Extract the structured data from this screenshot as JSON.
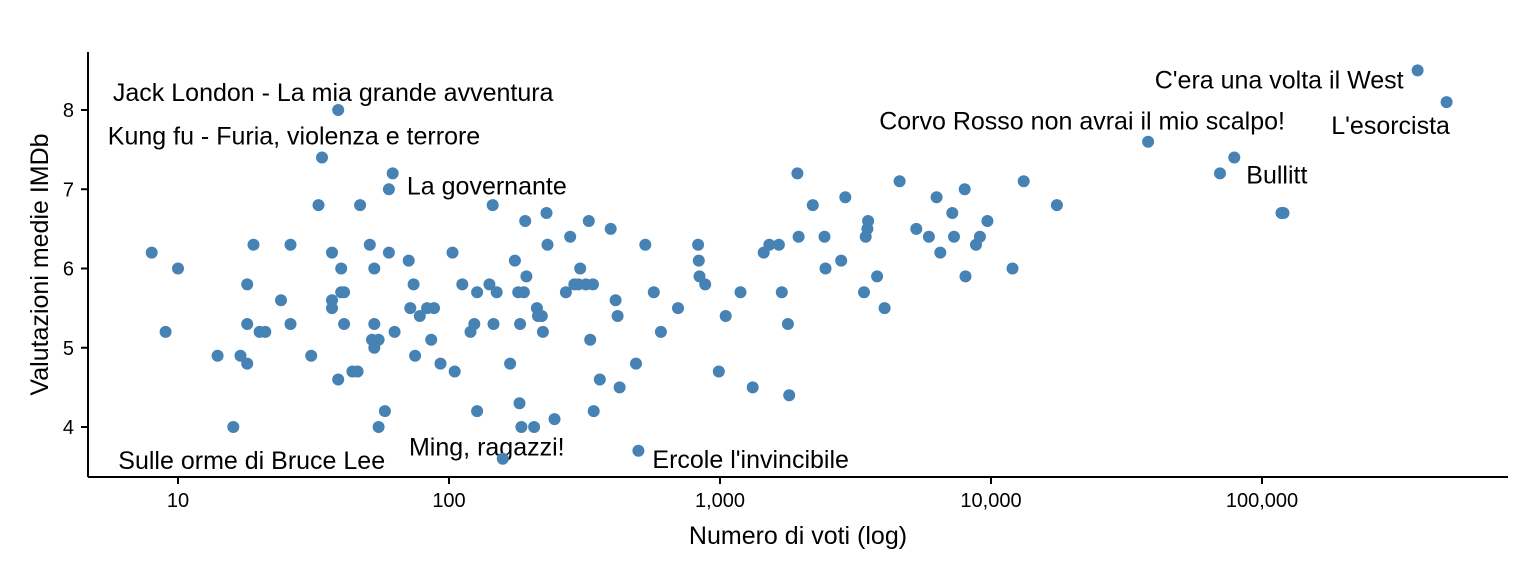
{
  "chart_data": {
    "type": "scatter",
    "title": "",
    "xlabel": "Numero di voti (log)",
    "ylabel": "Valutazioni medie IMDb",
    "x_scale": "log10",
    "xlim": [
      5,
      800000
    ],
    "ylim": [
      3.4,
      8.75
    ],
    "x_ticks": [
      {
        "value": 10,
        "label": "10"
      },
      {
        "value": 100,
        "label": "100"
      },
      {
        "value": 1000,
        "label": "1,000"
      },
      {
        "value": 10000,
        "label": "10,000"
      },
      {
        "value": 100000,
        "label": "100,000"
      }
    ],
    "y_ticks": [
      {
        "value": 4,
        "label": "4"
      },
      {
        "value": 5,
        "label": "5"
      },
      {
        "value": 6,
        "label": "6"
      },
      {
        "value": 7,
        "label": "7"
      },
      {
        "value": 8,
        "label": "8"
      }
    ],
    "grid": false,
    "point_color": "#4682B4",
    "points": [
      {
        "x": 8,
        "y": 6.2
      },
      {
        "x": 9,
        "y": 5.2
      },
      {
        "x": 10,
        "y": 6.0
      },
      {
        "x": 14,
        "y": 4.9
      },
      {
        "x": 16,
        "y": 4.0
      },
      {
        "x": 17,
        "y": 4.9
      },
      {
        "x": 18,
        "y": 5.8
      },
      {
        "x": 18,
        "y": 5.3
      },
      {
        "x": 18,
        "y": 4.8
      },
      {
        "x": 19,
        "y": 6.3
      },
      {
        "x": 20,
        "y": 5.2
      },
      {
        "x": 21,
        "y": 5.2
      },
      {
        "x": 24,
        "y": 5.6
      },
      {
        "x": 26,
        "y": 6.3
      },
      {
        "x": 26,
        "y": 5.3
      },
      {
        "x": 31,
        "y": 4.9
      },
      {
        "x": 33,
        "y": 6.8
      },
      {
        "x": 34,
        "y": 7.4
      },
      {
        "x": 37,
        "y": 6.2
      },
      {
        "x": 37,
        "y": 5.6
      },
      {
        "x": 37,
        "y": 5.5
      },
      {
        "x": 39,
        "y": 8.0
      },
      {
        "x": 39,
        "y": 4.6
      },
      {
        "x": 40,
        "y": 6.0
      },
      {
        "x": 40,
        "y": 5.7
      },
      {
        "x": 41,
        "y": 5.7
      },
      {
        "x": 41,
        "y": 5.3
      },
      {
        "x": 44,
        "y": 4.7
      },
      {
        "x": 46,
        "y": 4.7
      },
      {
        "x": 47,
        "y": 6.8
      },
      {
        "x": 51,
        "y": 6.3
      },
      {
        "x": 52,
        "y": 5.1
      },
      {
        "x": 53,
        "y": 6.0
      },
      {
        "x": 53,
        "y": 5.3
      },
      {
        "x": 53,
        "y": 5.0
      },
      {
        "x": 55,
        "y": 5.1
      },
      {
        "x": 55,
        "y": 4.0
      },
      {
        "x": 58,
        "y": 4.2
      },
      {
        "x": 60,
        "y": 7.0
      },
      {
        "x": 60,
        "y": 6.2
      },
      {
        "x": 62,
        "y": 7.2
      },
      {
        "x": 63,
        "y": 5.2
      },
      {
        "x": 71,
        "y": 6.1
      },
      {
        "x": 72,
        "y": 5.5
      },
      {
        "x": 74,
        "y": 5.8
      },
      {
        "x": 75,
        "y": 4.9
      },
      {
        "x": 78,
        "y": 5.4
      },
      {
        "x": 83,
        "y": 5.5
      },
      {
        "x": 86,
        "y": 5.1
      },
      {
        "x": 88,
        "y": 5.5
      },
      {
        "x": 93,
        "y": 4.8
      },
      {
        "x": 103,
        "y": 6.2
      },
      {
        "x": 105,
        "y": 4.7
      },
      {
        "x": 112,
        "y": 5.8
      },
      {
        "x": 120,
        "y": 5.2
      },
      {
        "x": 124,
        "y": 5.3
      },
      {
        "x": 127,
        "y": 4.2
      },
      {
        "x": 127,
        "y": 5.7
      },
      {
        "x": 141,
        "y": 5.8
      },
      {
        "x": 145,
        "y": 6.8
      },
      {
        "x": 146,
        "y": 5.3
      },
      {
        "x": 150,
        "y": 5.7
      },
      {
        "x": 158,
        "y": 3.6
      },
      {
        "x": 168,
        "y": 4.8
      },
      {
        "x": 175,
        "y": 6.1
      },
      {
        "x": 180,
        "y": 5.7
      },
      {
        "x": 182,
        "y": 4.3
      },
      {
        "x": 183,
        "y": 5.3
      },
      {
        "x": 185,
        "y": 4.0
      },
      {
        "x": 189,
        "y": 5.7
      },
      {
        "x": 191,
        "y": 6.6
      },
      {
        "x": 193,
        "y": 5.9
      },
      {
        "x": 206,
        "y": 4.0
      },
      {
        "x": 211,
        "y": 5.5
      },
      {
        "x": 213,
        "y": 5.4
      },
      {
        "x": 220,
        "y": 5.4
      },
      {
        "x": 222,
        "y": 5.2
      },
      {
        "x": 229,
        "y": 6.7
      },
      {
        "x": 231,
        "y": 6.3
      },
      {
        "x": 245,
        "y": 4.1
      },
      {
        "x": 270,
        "y": 5.7
      },
      {
        "x": 280,
        "y": 6.4
      },
      {
        "x": 290,
        "y": 5.8
      },
      {
        "x": 300,
        "y": 5.8
      },
      {
        "x": 305,
        "y": 6.0
      },
      {
        "x": 320,
        "y": 5.8
      },
      {
        "x": 328,
        "y": 6.6
      },
      {
        "x": 332,
        "y": 5.1
      },
      {
        "x": 340,
        "y": 5.8
      },
      {
        "x": 342,
        "y": 4.2
      },
      {
        "x": 360,
        "y": 4.6
      },
      {
        "x": 395,
        "y": 6.5
      },
      {
        "x": 412,
        "y": 5.6
      },
      {
        "x": 419,
        "y": 5.4
      },
      {
        "x": 426,
        "y": 4.5
      },
      {
        "x": 490,
        "y": 4.8
      },
      {
        "x": 500,
        "y": 3.7
      },
      {
        "x": 530,
        "y": 6.3
      },
      {
        "x": 570,
        "y": 5.7
      },
      {
        "x": 605,
        "y": 5.2
      },
      {
        "x": 700,
        "y": 5.5
      },
      {
        "x": 830,
        "y": 6.3
      },
      {
        "x": 835,
        "y": 6.1
      },
      {
        "x": 840,
        "y": 5.9
      },
      {
        "x": 882,
        "y": 5.8
      },
      {
        "x": 990,
        "y": 4.7
      },
      {
        "x": 1050,
        "y": 5.4
      },
      {
        "x": 1190,
        "y": 5.7
      },
      {
        "x": 1320,
        "y": 4.5
      },
      {
        "x": 1450,
        "y": 6.2
      },
      {
        "x": 1520,
        "y": 6.3
      },
      {
        "x": 1650,
        "y": 6.3
      },
      {
        "x": 1690,
        "y": 5.7
      },
      {
        "x": 1780,
        "y": 5.3
      },
      {
        "x": 1800,
        "y": 4.4
      },
      {
        "x": 1930,
        "y": 7.2
      },
      {
        "x": 1950,
        "y": 6.4
      },
      {
        "x": 2200,
        "y": 6.8
      },
      {
        "x": 2430,
        "y": 6.4
      },
      {
        "x": 2450,
        "y": 6.0
      },
      {
        "x": 2800,
        "y": 6.1
      },
      {
        "x": 2900,
        "y": 6.9
      },
      {
        "x": 3400,
        "y": 5.7
      },
      {
        "x": 3450,
        "y": 6.4
      },
      {
        "x": 3500,
        "y": 6.5
      },
      {
        "x": 3520,
        "y": 6.6
      },
      {
        "x": 3800,
        "y": 5.9
      },
      {
        "x": 4050,
        "y": 5.5
      },
      {
        "x": 4600,
        "y": 7.1
      },
      {
        "x": 5300,
        "y": 6.5
      },
      {
        "x": 5900,
        "y": 6.4
      },
      {
        "x": 6300,
        "y": 6.9
      },
      {
        "x": 6500,
        "y": 6.2
      },
      {
        "x": 7200,
        "y": 6.7
      },
      {
        "x": 7300,
        "y": 6.4
      },
      {
        "x": 8000,
        "y": 7.0
      },
      {
        "x": 8050,
        "y": 5.9
      },
      {
        "x": 8800,
        "y": 6.3
      },
      {
        "x": 9100,
        "y": 6.4
      },
      {
        "x": 9700,
        "y": 6.6
      },
      {
        "x": 12000,
        "y": 6.0
      },
      {
        "x": 13200,
        "y": 7.1
      },
      {
        "x": 17500,
        "y": 6.8
      },
      {
        "x": 38000,
        "y": 7.6
      },
      {
        "x": 70000,
        "y": 7.2
      },
      {
        "x": 79000,
        "y": 7.4
      },
      {
        "x": 118000,
        "y": 6.7
      },
      {
        "x": 120000,
        "y": 6.7
      },
      {
        "x": 375000,
        "y": 8.5
      },
      {
        "x": 480000,
        "y": 8.1
      }
    ],
    "annotations": [
      {
        "text": "Jack London - La mia grande avventura",
        "x": 39,
        "y": 8.0
      },
      {
        "text": "Kung fu - Furia, violenza e terrore",
        "x": 34,
        "y": 7.4
      },
      {
        "text": "La governante",
        "x": 60,
        "y": 7.0
      },
      {
        "text": "Sulle orme di Bruce Lee",
        "x": 16,
        "y": 4.0
      },
      {
        "text": "Ming, ragazzi!",
        "x": 158,
        "y": 3.6
      },
      {
        "text": "Ercole l'invincibile",
        "x": 500,
        "y": 3.7
      },
      {
        "text": "C'era una volta il West",
        "x": 375000,
        "y": 8.5
      },
      {
        "text": "Corvo Rosso non avrai il mio scalpo!",
        "x": 38000,
        "y": 7.6
      },
      {
        "text": "L'esorcista",
        "x": 480000,
        "y": 8.1
      },
      {
        "text": "Bullitt",
        "x": 79000,
        "y": 7.4
      }
    ]
  }
}
